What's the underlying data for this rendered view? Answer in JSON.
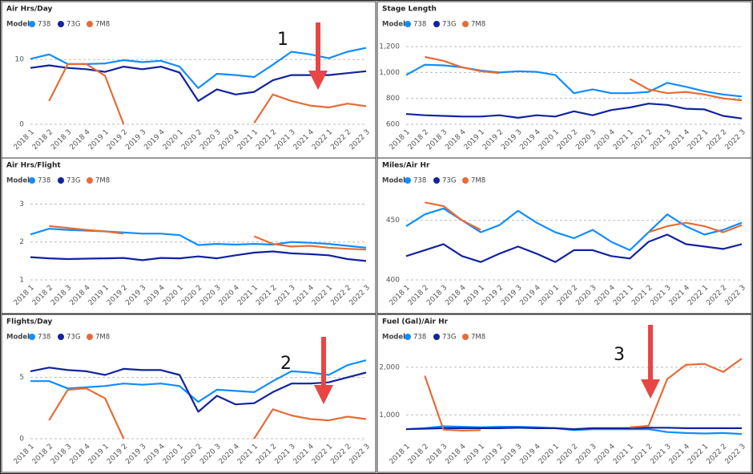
{
  "chart_data": [
    {
      "type": "line",
      "title": "Air Hrs/Day",
      "legend_title": "Model",
      "annotation": "1",
      "categories": [
        "2018 1",
        "2018 2",
        "2018 3",
        "2018 4",
        "2019 1",
        "2019 2",
        "2019 3",
        "2019 4",
        "2020 1",
        "2020 2",
        "2020 3",
        "2020 4",
        "2021 1",
        "2021 2",
        "2021 3",
        "2021 4",
        "2022 1",
        "2022 2",
        "2022 3"
      ],
      "ylim": [
        0,
        13
      ],
      "yticks": [
        0,
        10
      ],
      "grid": true,
      "series": [
        {
          "name": "738",
          "color": "#118DFF",
          "values": [
            10.1,
            10.8,
            9.3,
            9.3,
            9.4,
            9.9,
            9.6,
            9.8,
            8.9,
            5.6,
            7.8,
            7.6,
            7.3,
            9.2,
            11.2,
            10.8,
            10.2,
            11.2,
            11.8
          ]
        },
        {
          "name": "73G",
          "color": "#12239E",
          "values": [
            8.7,
            9.1,
            8.7,
            8.5,
            8.1,
            8.9,
            8.5,
            8.9,
            8.0,
            3.6,
            5.4,
            4.6,
            5.0,
            6.8,
            7.6,
            7.6,
            7.6,
            7.9,
            8.2
          ]
        },
        {
          "name": "7M8",
          "color": "#E66C37",
          "values": [
            null,
            3.6,
            9.3,
            9.3,
            7.5,
            0,
            null,
            null,
            null,
            null,
            null,
            null,
            0.2,
            4.6,
            3.6,
            2.9,
            2.6,
            3.2,
            2.8
          ]
        }
      ]
    },
    {
      "type": "line",
      "title": "Stage Length",
      "legend_title": "Model",
      "categories": [
        "2018 1",
        "2018 2",
        "2018 3",
        "2018 4",
        "2019 1",
        "2019 2",
        "2019 3",
        "2019 4",
        "2020 1",
        "2020 2",
        "2020 3",
        "2020 4",
        "2021 1",
        "2021 2",
        "2021 3",
        "2021 4",
        "2022 1",
        "2022 2",
        "2022 3"
      ],
      "ylim": [
        600,
        1250
      ],
      "yticks": [
        600,
        800,
        {
          "value": 1000,
          "label": "1,000"
        },
        {
          "value": 1200,
          "label": "1,200"
        }
      ],
      "grid": true,
      "series": [
        {
          "name": "738",
          "color": "#118DFF",
          "values": [
            980,
            1060,
            1055,
            1040,
            1015,
            1000,
            1010,
            1005,
            980,
            840,
            870,
            840,
            840,
            850,
            920,
            890,
            855,
            830,
            815
          ]
        },
        {
          "name": "73G",
          "color": "#12239E",
          "values": [
            680,
            670,
            665,
            660,
            660,
            670,
            650,
            670,
            660,
            700,
            670,
            710,
            730,
            760,
            750,
            720,
            715,
            665,
            645
          ]
        },
        {
          "name": "7M8",
          "color": "#E66C37",
          "values": [
            null,
            1120,
            1090,
            1040,
            1010,
            995,
            null,
            null,
            null,
            null,
            null,
            null,
            950,
            870,
            840,
            850,
            830,
            800,
            785
          ]
        }
      ]
    },
    {
      "type": "line",
      "title": "Air Hrs/Flight",
      "legend_title": "Model",
      "categories": [
        "2018 1",
        "2018 2",
        "2018 3",
        "2018 4",
        "2019 1",
        "2019 2",
        "2019 3",
        "2019 4",
        "2020 1",
        "2020 2",
        "2020 3",
        "2020 4",
        "2021 1",
        "2021 2",
        "2021 3",
        "2021 4",
        "2022 1",
        "2022 2",
        "2022 3"
      ],
      "ylim": [
        1,
        3.2
      ],
      "yticks": [
        1,
        2,
        3
      ],
      "grid": true,
      "series": [
        {
          "name": "738",
          "color": "#118DFF",
          "values": [
            2.2,
            2.35,
            2.32,
            2.3,
            2.28,
            2.25,
            2.22,
            2.22,
            2.18,
            1.92,
            1.95,
            1.93,
            1.95,
            1.93,
            2.0,
            1.98,
            1.95,
            1.9,
            1.85
          ]
        },
        {
          "name": "73G",
          "color": "#12239E",
          "values": [
            1.6,
            1.57,
            1.55,
            1.56,
            1.57,
            1.58,
            1.52,
            1.58,
            1.57,
            1.62,
            1.57,
            1.65,
            1.72,
            1.75,
            1.7,
            1.68,
            1.65,
            1.55,
            1.5
          ]
        },
        {
          "name": "7M8",
          "color": "#E66C37",
          "values": [
            null,
            2.42,
            2.37,
            2.32,
            2.28,
            2.22,
            null,
            null,
            null,
            null,
            null,
            null,
            2.15,
            1.95,
            1.88,
            1.9,
            1.85,
            1.82,
            1.8
          ]
        }
      ]
    },
    {
      "type": "line",
      "title": "Miles/Air Hr",
      "legend_title": "Model",
      "categories": [
        "2018 1",
        "2018 2",
        "2018 3",
        "2018 4",
        "2019 1",
        "2019 2",
        "2019 3",
        "2019 4",
        "2020 1",
        "2020 2",
        "2020 3",
        "2020 4",
        "2021 1",
        "2021 2",
        "2021 3",
        "2021 4",
        "2022 1",
        "2022 2",
        "2022 3"
      ],
      "ylim": [
        400,
        470
      ],
      "yticks": [
        400,
        450
      ],
      "grid": true,
      "series": [
        {
          "name": "738",
          "color": "#118DFF",
          "values": [
            445,
            455,
            460,
            450,
            440,
            446,
            458,
            448,
            440,
            435,
            442,
            432,
            425,
            440,
            455,
            445,
            438,
            442,
            448
          ]
        },
        {
          "name": "73G",
          "color": "#12239E",
          "values": [
            420,
            425,
            430,
            420,
            415,
            422,
            428,
            422,
            415,
            425,
            425,
            420,
            418,
            432,
            438,
            430,
            428,
            426,
            430
          ]
        },
        {
          "name": "7M8",
          "color": "#E66C37",
          "values": [
            null,
            465,
            462,
            450,
            442,
            null,
            null,
            null,
            null,
            null,
            null,
            null,
            null,
            440,
            445,
            448,
            445,
            440,
            446
          ]
        }
      ]
    },
    {
      "type": "line",
      "title": "Flights/Day",
      "legend_title": "Model",
      "annotation": "2",
      "categories": [
        "2018 1",
        "2018 2",
        "2018 3",
        "2018 4",
        "2019 1",
        "2019 2",
        "2019 3",
        "2019 4",
        "2020 1",
        "2020 2",
        "2020 3",
        "2020 4",
        "2021 1",
        "2021 2",
        "2021 3",
        "2021 4",
        "2022 1",
        "2022 2",
        "2022 3"
      ],
      "ylim": [
        0,
        7
      ],
      "yticks": [
        0,
        5
      ],
      "grid": true,
      "series": [
        {
          "name": "738",
          "color": "#118DFF",
          "values": [
            4.7,
            4.7,
            4.1,
            4.2,
            4.3,
            4.5,
            4.4,
            4.5,
            4.3,
            3.0,
            4.0,
            3.9,
            3.8,
            4.7,
            5.5,
            5.4,
            5.2,
            6.0,
            6.4
          ]
        },
        {
          "name": "73G",
          "color": "#12239E",
          "values": [
            5.5,
            5.8,
            5.6,
            5.5,
            5.2,
            5.7,
            5.6,
            5.6,
            5.2,
            2.2,
            3.5,
            2.8,
            2.9,
            3.8,
            4.5,
            4.5,
            4.6,
            5.0,
            5.4
          ]
        },
        {
          "name": "7M8",
          "color": "#E66C37",
          "values": [
            null,
            1.5,
            4.0,
            4.1,
            3.3,
            0,
            null,
            null,
            null,
            null,
            null,
            null,
            0,
            2.4,
            1.9,
            1.6,
            1.5,
            1.8,
            1.6
          ]
        }
      ]
    },
    {
      "type": "line",
      "title": "Fuel (Gal)/Air Hr",
      "legend_title": "Model",
      "annotation": "3",
      "categories": [
        "2018 1",
        "2018 2",
        "2018 3",
        "2018 4",
        "2019 1",
        "2019 2",
        "2019 3",
        "2019 4",
        "2020 1",
        "2020 2",
        "2020 3",
        "2020 4",
        "2021 1",
        "2021 2",
        "2021 3",
        "2021 4",
        "2022 1",
        "2022 2",
        "2022 3"
      ],
      "ylim": [
        500,
        2300
      ],
      "yticks": [
        {
          "value": 1000,
          "label": "1,000"
        },
        {
          "value": 2000,
          "label": "2,000"
        }
      ],
      "grid": true,
      "series": [
        {
          "name": "738",
          "color": "#118DFF",
          "values": [
            700,
            720,
            760,
            750,
            740,
            750,
            750,
            740,
            720,
            680,
            700,
            700,
            700,
            700,
            640,
            620,
            610,
            620,
            600
          ]
        },
        {
          "name": "73G",
          "color": "#12239E",
          "values": [
            700,
            710,
            720,
            720,
            720,
            720,
            730,
            720,
            720,
            700,
            720,
            720,
            720,
            730,
            730,
            720,
            720,
            720,
            720
          ]
        },
        {
          "name": "7M8",
          "color": "#E66C37",
          "values": [
            null,
            1820,
            690,
            670,
            680,
            null,
            null,
            null,
            null,
            null,
            null,
            null,
            740,
            770,
            1750,
            2050,
            2070,
            1900,
            2180
          ]
        }
      ]
    }
  ]
}
